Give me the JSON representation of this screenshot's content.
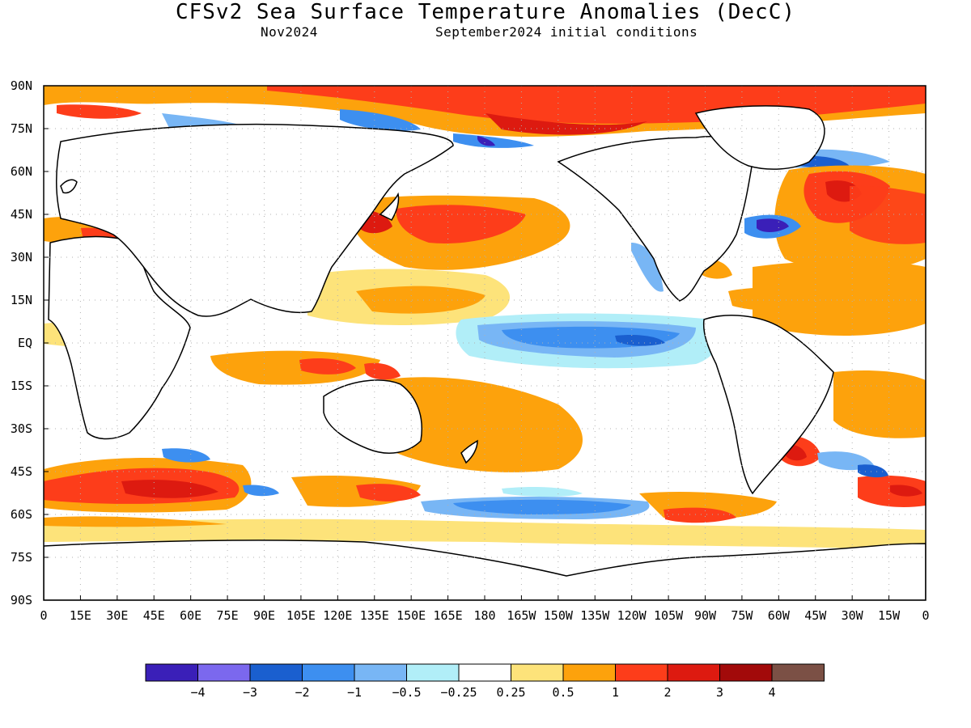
{
  "title": "CFSv2 Sea Surface Temperature Anomalies (DecC)",
  "subtitle_left": "Nov2024",
  "subtitle_right": "September2024 initial conditions",
  "lat_labels": [
    "90N",
    "75N",
    "60N",
    "45N",
    "30N",
    "15N",
    "EQ",
    "15S",
    "30S",
    "45S",
    "60S",
    "75S",
    "90S"
  ],
  "lon_labels": [
    "0",
    "15E",
    "30E",
    "45E",
    "60E",
    "75E",
    "90E",
    "105E",
    "120E",
    "135E",
    "150E",
    "165E",
    "180",
    "165W",
    "150W",
    "135W",
    "120W",
    "105W",
    "90W",
    "75W",
    "60W",
    "45W",
    "30W",
    "15W",
    "0"
  ],
  "colorbar": {
    "colors": [
      "#3a1fb8",
      "#7b68ee",
      "#1a5fcf",
      "#3d8ff0",
      "#78b6f5",
      "#b1eef8",
      "#ffffff",
      "#fde37a",
      "#fda20c",
      "#fd3d1a",
      "#dd1a10",
      "#a20a0a",
      "#7b5045"
    ],
    "labels": [
      "−4",
      "−3",
      "−2",
      "−1",
      "−0.5",
      "−0.25",
      "0.25",
      "0.5",
      "1",
      "2",
      "3",
      "4"
    ]
  }
}
